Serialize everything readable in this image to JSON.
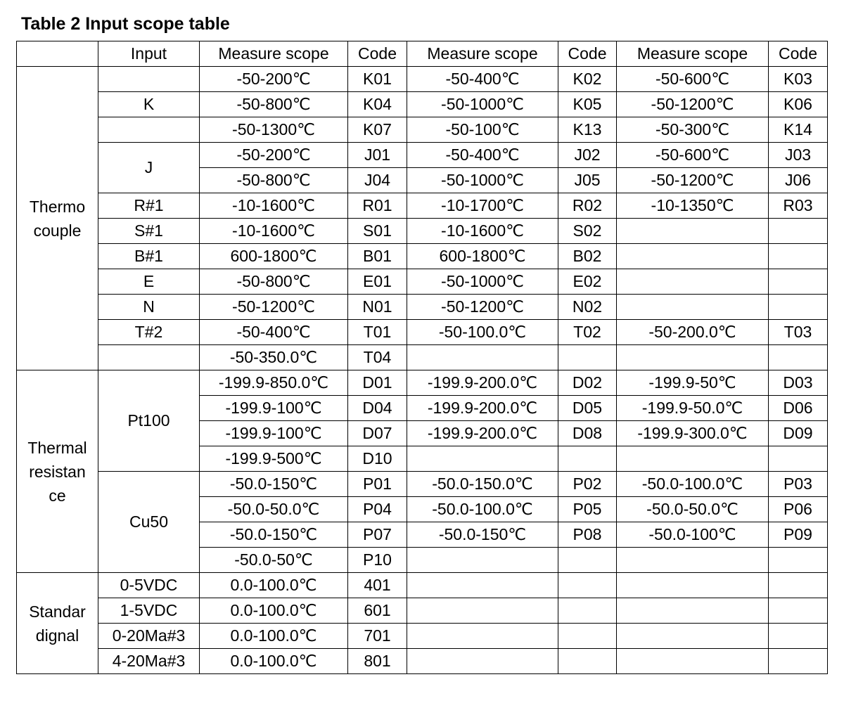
{
  "title": "Table 2 Input scope table",
  "header": [
    "Input",
    "Measure scope",
    "Code",
    "Measure scope",
    "Code",
    "Measure scope",
    "Code"
  ],
  "groups": [
    {
      "label": "Thermo\ncouple",
      "inputs": [
        {
          "rows": [
            [
              "-50-200℃",
              "K01",
              "-50-400℃",
              "K02",
              "-50-600℃",
              "K03"
            ]
          ]
        },
        {
          "label": "K",
          "rows": [
            [
              "-50-800℃",
              "K04",
              "-50-1000℃",
              "K05",
              "-50-1200℃",
              "K06"
            ]
          ]
        },
        {
          "rows": [
            [
              "-50-1300℃",
              "K07",
              "-50-100℃",
              "K13",
              "-50-300℃",
              "K14"
            ]
          ]
        },
        {
          "label": "J",
          "rows": [
            [
              "-50-200℃",
              "J01",
              "-50-400℃",
              "J02",
              "-50-600℃",
              "J03"
            ],
            [
              "-50-800℃",
              "J04",
              "-50-1000℃",
              "J05",
              "-50-1200℃",
              "J06"
            ]
          ]
        },
        {
          "label": "R#1",
          "rows": [
            [
              "-10-1600℃",
              "R01",
              "-10-1700℃",
              "R02",
              "-10-1350℃",
              "R03"
            ]
          ]
        },
        {
          "label": "S#1",
          "rows": [
            [
              "-10-1600℃",
              "S01",
              "-10-1600℃",
              "S02"
            ]
          ]
        },
        {
          "label": "B#1",
          "rows": [
            [
              "600-1800℃",
              "B01",
              "600-1800℃",
              "B02"
            ]
          ]
        },
        {
          "label": "E",
          "rows": [
            [
              "-50-800℃",
              "E01",
              "-50-1000℃",
              "E02"
            ]
          ]
        },
        {
          "label": "N",
          "rows": [
            [
              "-50-1200℃",
              "N01",
              "-50-1200℃",
              "N02"
            ]
          ]
        },
        {
          "label": "T#2",
          "rows": [
            [
              "-50-400℃",
              "T01",
              "-50-100.0℃",
              "T02",
              "-50-200.0℃",
              "T03"
            ]
          ]
        },
        {
          "rows": [
            [
              "-50-350.0℃",
              "T04"
            ]
          ]
        }
      ]
    },
    {
      "label": "Thermal\nresistan\nce",
      "inputs": [
        {
          "label": "Pt100",
          "rows": [
            [
              "-199.9-850.0℃",
              "D01",
              "-199.9-200.0℃",
              "D02",
              "-199.9-50℃",
              "D03"
            ],
            [
              "-199.9-100℃",
              "D04",
              "-199.9-200.0℃",
              "D05",
              "-199.9-50.0℃",
              "D06"
            ],
            [
              "-199.9-100℃",
              "D07",
              "-199.9-200.0℃",
              "D08",
              "-199.9-300.0℃",
              "D09"
            ],
            [
              "-199.9-500℃",
              "D10"
            ]
          ]
        },
        {
          "label": "Cu50",
          "rows": [
            [
              "-50.0-150℃",
              "P01",
              "-50.0-150.0℃",
              "P02",
              "-50.0-100.0℃",
              "P03"
            ],
            [
              "-50.0-50.0℃",
              "P04",
              "-50.0-100.0℃",
              "P05",
              "-50.0-50.0℃",
              "P06"
            ],
            [
              "-50.0-150℃",
              "P07",
              "-50.0-150℃",
              "P08",
              "-50.0-100℃",
              "P09"
            ],
            [
              "-50.0-50℃",
              "P10"
            ]
          ]
        }
      ]
    },
    {
      "label": "Standar\ndignal",
      "inputs": [
        {
          "label": "0-5VDC",
          "rows": [
            [
              "0.0-100.0℃",
              "401"
            ]
          ]
        },
        {
          "label": "1-5VDC",
          "rows": [
            [
              "0.0-100.0℃",
              "601"
            ]
          ]
        },
        {
          "label": "0-20Ma#3",
          "rows": [
            [
              "0.0-100.0℃",
              "701"
            ]
          ]
        },
        {
          "label": "4-20Ma#3",
          "rows": [
            [
              "0.0-100.0℃",
              "801"
            ]
          ]
        }
      ]
    }
  ]
}
